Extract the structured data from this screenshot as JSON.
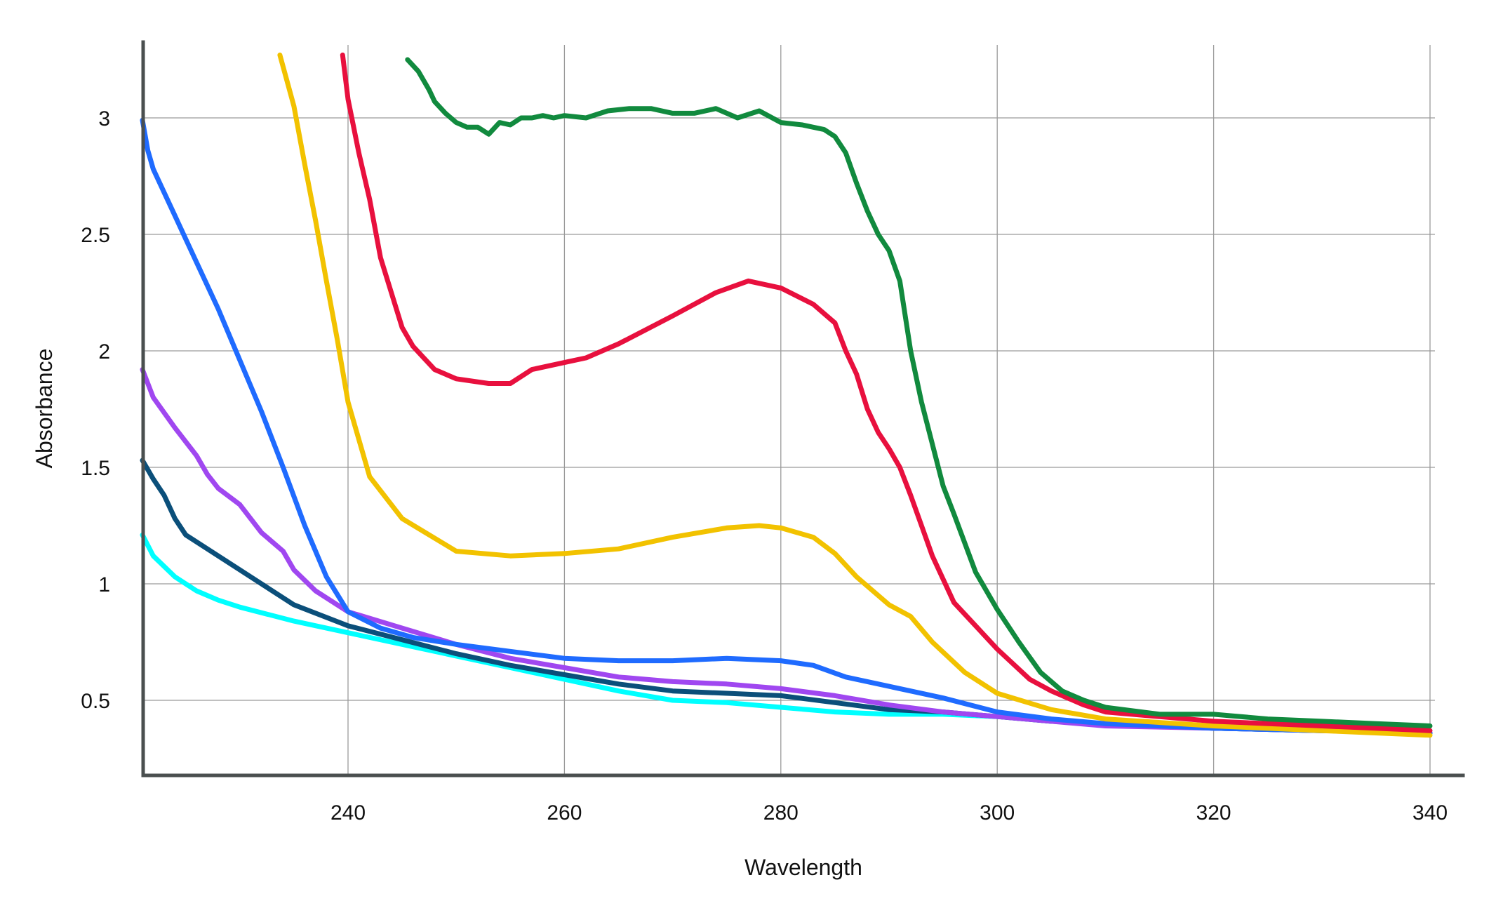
{
  "chart_data": {
    "type": "line",
    "title": "",
    "xlabel": "Wavelength",
    "ylabel": "Absorbance",
    "xlim": [
      221,
      343
    ],
    "ylim": [
      0.2,
      3.3
    ],
    "grid": true,
    "legend": "none",
    "x_ticks": [
      240,
      260,
      280,
      300,
      320,
      340
    ],
    "y_ticks": [
      0.5,
      1,
      1.5,
      2,
      2.5,
      3
    ],
    "x_tick_labels": [
      "240",
      "260",
      "280",
      "300",
      "320",
      "340"
    ],
    "y_tick_labels": [
      "0.5",
      "1",
      "1.5",
      "2",
      "2.5",
      "3"
    ],
    "series": [
      {
        "name": "cyan",
        "color": "#00FFFF",
        "x": [
          221,
          222,
          224,
          226,
          228,
          230,
          235,
          240,
          245,
          250,
          255,
          260,
          265,
          270,
          275,
          280,
          285,
          290,
          295,
          300,
          305,
          310,
          320,
          330,
          340
        ],
        "y": [
          1.21,
          1.12,
          1.03,
          0.97,
          0.93,
          0.9,
          0.84,
          0.79,
          0.74,
          0.69,
          0.64,
          0.59,
          0.54,
          0.5,
          0.49,
          0.47,
          0.45,
          0.44,
          0.44,
          0.43,
          0.41,
          0.4,
          0.38,
          0.37,
          0.36
        ]
      },
      {
        "name": "dark-blue",
        "color": "#0B4F7A",
        "x": [
          221,
          222,
          223,
          224,
          225,
          227,
          230,
          235,
          240,
          245,
          250,
          255,
          260,
          265,
          270,
          275,
          280,
          285,
          290,
          295,
          300,
          305,
          310,
          320,
          330,
          340
        ],
        "y": [
          1.53,
          1.45,
          1.38,
          1.28,
          1.21,
          1.15,
          1.06,
          0.91,
          0.82,
          0.76,
          0.7,
          0.65,
          0.61,
          0.57,
          0.54,
          0.53,
          0.52,
          0.49,
          0.46,
          0.45,
          0.43,
          0.41,
          0.4,
          0.38,
          0.37,
          0.36
        ]
      },
      {
        "name": "purple",
        "color": "#A047F0",
        "x": [
          221,
          222,
          224,
          226,
          227,
          228,
          230,
          232,
          234,
          235,
          237,
          240,
          245,
          250,
          255,
          260,
          265,
          270,
          275,
          280,
          285,
          290,
          295,
          300,
          305,
          310,
          320,
          330,
          340
        ],
        "y": [
          1.92,
          1.8,
          1.67,
          1.55,
          1.47,
          1.41,
          1.34,
          1.22,
          1.14,
          1.06,
          0.97,
          0.88,
          0.81,
          0.74,
          0.68,
          0.64,
          0.6,
          0.58,
          0.57,
          0.55,
          0.52,
          0.48,
          0.45,
          0.43,
          0.41,
          0.39,
          0.38,
          0.37,
          0.36
        ]
      },
      {
        "name": "blue",
        "color": "#1F6BFF",
        "x": [
          221,
          221.5,
          222,
          224,
          226,
          228,
          230,
          232,
          234,
          236,
          238,
          240,
          243,
          246,
          250,
          255,
          260,
          265,
          270,
          275,
          280,
          283,
          286,
          290,
          295,
          300,
          305,
          310,
          320,
          330,
          340
        ],
        "y": [
          2.99,
          2.86,
          2.78,
          2.58,
          2.38,
          2.18,
          1.96,
          1.74,
          1.5,
          1.25,
          1.03,
          0.88,
          0.81,
          0.77,
          0.74,
          0.71,
          0.68,
          0.67,
          0.67,
          0.68,
          0.67,
          0.65,
          0.6,
          0.56,
          0.51,
          0.45,
          0.42,
          0.4,
          0.38,
          0.37,
          0.36
        ]
      },
      {
        "name": "yellow",
        "color": "#F2C200",
        "x": [
          233.7,
          235,
          236,
          237,
          238,
          239,
          240,
          242,
          245,
          250,
          255,
          260,
          265,
          270,
          275,
          278,
          280,
          283,
          285,
          287,
          290,
          292,
          294,
          297,
          300,
          305,
          310,
          320,
          330,
          340
        ],
        "y": [
          3.27,
          3.05,
          2.8,
          2.56,
          2.3,
          2.05,
          1.78,
          1.46,
          1.28,
          1.14,
          1.12,
          1.13,
          1.15,
          1.2,
          1.24,
          1.25,
          1.24,
          1.2,
          1.13,
          1.03,
          0.91,
          0.86,
          0.75,
          0.62,
          0.53,
          0.46,
          0.42,
          0.39,
          0.37,
          0.35
        ]
      },
      {
        "name": "red",
        "color": "#E8103E",
        "x": [
          239.5,
          240,
          241,
          242,
          243,
          244,
          245,
          246,
          247,
          248,
          250,
          253,
          255,
          257,
          260,
          262,
          265,
          270,
          274,
          277,
          280,
          283,
          285,
          286,
          287,
          288,
          289,
          290,
          291,
          292,
          293,
          294,
          296,
          300,
          303,
          305,
          308,
          310,
          320,
          330,
          340
        ],
        "y": [
          3.27,
          3.08,
          2.85,
          2.65,
          2.4,
          2.25,
          2.1,
          2.02,
          1.97,
          1.92,
          1.88,
          1.86,
          1.86,
          1.92,
          1.95,
          1.97,
          2.03,
          2.15,
          2.25,
          2.3,
          2.27,
          2.2,
          2.12,
          2.0,
          1.9,
          1.75,
          1.65,
          1.58,
          1.5,
          1.38,
          1.25,
          1.12,
          0.92,
          0.72,
          0.59,
          0.54,
          0.48,
          0.45,
          0.41,
          0.39,
          0.37
        ]
      },
      {
        "name": "green",
        "color": "#118A3E",
        "x": [
          245.5,
          246.5,
          247.5,
          248,
          249,
          250,
          251,
          252,
          253,
          254,
          255,
          256,
          257,
          258,
          259,
          260,
          262,
          264,
          266,
          268,
          270,
          272,
          274,
          276,
          278,
          280,
          282,
          284,
          285,
          286,
          287,
          288,
          289,
          290,
          291,
          292,
          293,
          294,
          295,
          296,
          298,
          300,
          302,
          304,
          306,
          308,
          310,
          315,
          320,
          325,
          330,
          335,
          340
        ],
        "y": [
          3.25,
          3.2,
          3.12,
          3.07,
          3.02,
          2.98,
          2.96,
          2.96,
          2.93,
          2.98,
          2.97,
          3.0,
          3.0,
          3.01,
          3.0,
          3.01,
          3.0,
          3.03,
          3.04,
          3.04,
          3.02,
          3.02,
          3.04,
          3.0,
          3.03,
          2.98,
          2.97,
          2.95,
          2.92,
          2.85,
          2.72,
          2.6,
          2.5,
          2.43,
          2.3,
          2.0,
          1.78,
          1.6,
          1.42,
          1.3,
          1.05,
          0.89,
          0.75,
          0.62,
          0.54,
          0.5,
          0.47,
          0.44,
          0.44,
          0.42,
          0.41,
          0.4,
          0.39
        ]
      }
    ]
  }
}
